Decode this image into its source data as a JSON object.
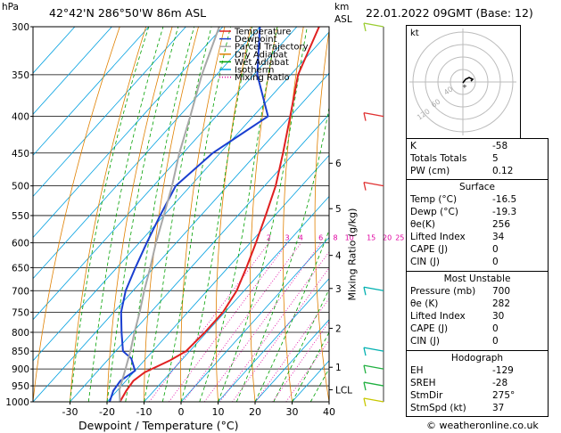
{
  "header": {
    "location": "42°42'N  286°50'W  86m  ASL",
    "datetime": "22.01.2022  09GMT  (Base: 12)",
    "hpa_unit": "hPa",
    "km_unit": "km",
    "asl_unit": "ASL",
    "credit": "© weatheronline.co.uk"
  },
  "colors": {
    "temperature": "#e02020",
    "dewpoint": "#1a3fd0",
    "parcel": "#a8a8a8",
    "dry_adiabat": "#e08000",
    "wet_adiabat": "#00a000",
    "isotherm": "#00a0e0",
    "mixing_ratio": "#e000a0"
  },
  "chart_data": {
    "type": "line",
    "title": "",
    "xlabel": "Dewpoint / Temperature (°C)",
    "ylabel": "Mixing Ratio (g/kg)",
    "xlim": [
      -40,
      40
    ],
    "ylim": [
      1000,
      300
    ],
    "y_scale": "log",
    "x_ticks": [
      "-30",
      "-20",
      "-10",
      "0",
      "10",
      "20",
      "30",
      "40"
    ],
    "pressure_ticks": [
      "300",
      "350",
      "400",
      "450",
      "500",
      "550",
      "600",
      "650",
      "700",
      "750",
      "800",
      "850",
      "900",
      "950",
      "1000"
    ],
    "km_ticks": [
      {
        "p": 465,
        "label": "6"
      },
      {
        "p": 538,
        "label": "5"
      },
      {
        "p": 625,
        "label": "4"
      },
      {
        "p": 695,
        "label": "3"
      },
      {
        "p": 790,
        "label": "2"
      },
      {
        "p": 895,
        "label": "1"
      },
      {
        "p": 962,
        "label": "LCL"
      }
    ],
    "mixing_ratio_labels": [
      "2",
      "3",
      "4",
      "6",
      "8",
      "10",
      "15",
      "20",
      "25"
    ],
    "legend": {
      "placement": "top-left",
      "items": [
        "Temperature",
        "Dewpoint",
        "Parcel Trajectory",
        "Dry Adiabat",
        "Wet Adiabat",
        "Isotherm",
        "Mixing Ratio"
      ]
    },
    "series": [
      {
        "name": "Temperature",
        "points": [
          [
            1000,
            -16.5
          ],
          [
            965,
            -17.5
          ],
          [
            935,
            -18
          ],
          [
            910,
            -17
          ],
          [
            875,
            -13
          ],
          [
            850,
            -11
          ],
          [
            800,
            -10.5
          ],
          [
            750,
            -10.5
          ],
          [
            700,
            -12
          ],
          [
            650,
            -15
          ],
          [
            600,
            -18.5
          ],
          [
            550,
            -22.5
          ],
          [
            500,
            -27
          ],
          [
            450,
            -33
          ],
          [
            400,
            -40
          ],
          [
            350,
            -48
          ],
          [
            300,
            -54
          ]
        ]
      },
      {
        "name": "Dewpoint",
        "points": [
          [
            1000,
            -19.3
          ],
          [
            965,
            -21
          ],
          [
            935,
            -21.5
          ],
          [
            905,
            -20
          ],
          [
            870,
            -24
          ],
          [
            850,
            -28
          ],
          [
            800,
            -33
          ],
          [
            750,
            -38
          ],
          [
            700,
            -42
          ],
          [
            650,
            -45
          ],
          [
            600,
            -48
          ],
          [
            550,
            -51
          ],
          [
            500,
            -54
          ],
          [
            450,
            -52
          ],
          [
            400,
            -46
          ],
          [
            350,
            -59
          ],
          [
            300,
            -70
          ]
        ]
      },
      {
        "name": "Parcel Trajectory",
        "points": [
          [
            1000,
            -16.5
          ],
          [
            962,
            -19.6
          ],
          [
            900,
            -23
          ],
          [
            850,
            -26
          ],
          [
            800,
            -29.5
          ],
          [
            750,
            -33
          ],
          [
            700,
            -37
          ],
          [
            650,
            -41
          ],
          [
            600,
            -45.5
          ],
          [
            550,
            -50
          ],
          [
            500,
            -55
          ],
          [
            450,
            -61
          ],
          [
            400,
            -67
          ],
          [
            350,
            -74
          ],
          [
            300,
            -81
          ]
        ]
      }
    ]
  },
  "hodograph": {
    "label": "kt",
    "ring_labels": [
      "40",
      "60",
      "120"
    ]
  },
  "wind_barbs": [
    {
      "p": 300,
      "color": "#9acd32"
    },
    {
      "p": 400,
      "color": "#e03030"
    },
    {
      "p": 500,
      "color": "#e03030"
    },
    {
      "p": 700,
      "color": "#00b0b0"
    },
    {
      "p": 850,
      "color": "#00b0b0"
    },
    {
      "p": 900,
      "color": "#20b040"
    },
    {
      "p": 950,
      "color": "#20b040"
    },
    {
      "p": 1000,
      "color": "#c8c800"
    }
  ],
  "indices": {
    "top": [
      {
        "k": "K",
        "v": "-58"
      },
      {
        "k": "Totals Totals",
        "v": "5"
      },
      {
        "k": "PW (cm)",
        "v": "0.12"
      }
    ],
    "surface_title": "Surface",
    "surface": [
      {
        "k": "Temp (°C)",
        "v": "-16.5"
      },
      {
        "k": "Dewp (°C)",
        "v": "-19.3"
      },
      {
        "k": "θe(K)",
        "v": "256"
      },
      {
        "k": "Lifted Index",
        "v": "34"
      },
      {
        "k": "CAPE (J)",
        "v": "0"
      },
      {
        "k": "CIN (J)",
        "v": "0"
      }
    ],
    "unstable_title": "Most Unstable",
    "unstable": [
      {
        "k": "Pressure (mb)",
        "v": "700"
      },
      {
        "k": "θe (K)",
        "v": "282"
      },
      {
        "k": "Lifted Index",
        "v": "30"
      },
      {
        "k": "CAPE (J)",
        "v": "0"
      },
      {
        "k": "CIN (J)",
        "v": "0"
      }
    ],
    "hodo_title": "Hodograph",
    "hodo": [
      {
        "k": "EH",
        "v": "-129"
      },
      {
        "k": "SREH",
        "v": "-28"
      },
      {
        "k": "StmDir",
        "v": "275°"
      },
      {
        "k": "StmSpd (kt)",
        "v": "37"
      }
    ]
  }
}
